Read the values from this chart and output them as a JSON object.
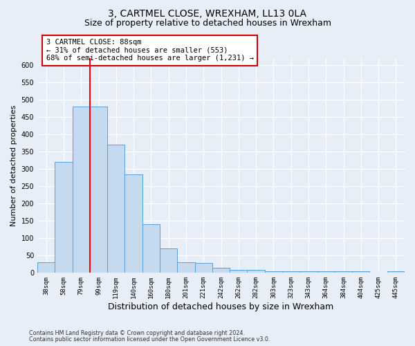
{
  "title": "3, CARTMEL CLOSE, WREXHAM, LL13 0LA",
  "subtitle": "Size of property relative to detached houses in Wrexham",
  "xlabel": "Distribution of detached houses by size in Wrexham",
  "ylabel": "Number of detached properties",
  "bar_labels": [
    "38sqm",
    "58sqm",
    "79sqm",
    "99sqm",
    "119sqm",
    "140sqm",
    "160sqm",
    "180sqm",
    "201sqm",
    "221sqm",
    "242sqm",
    "262sqm",
    "282sqm",
    "303sqm",
    "323sqm",
    "343sqm",
    "364sqm",
    "384sqm",
    "404sqm",
    "425sqm",
    "445sqm"
  ],
  "bar_values": [
    30,
    320,
    480,
    480,
    370,
    285,
    140,
    70,
    30,
    28,
    15,
    8,
    8,
    5,
    5,
    5,
    5,
    5,
    5,
    0,
    5
  ],
  "bar_color": "#c5d9ef",
  "bar_edge_color": "#5a9fd4",
  "red_line_x": 3.0,
  "annotation_text": "3 CARTMEL CLOSE: 88sqm\n← 31% of detached houses are smaller (553)\n68% of semi-detached houses are larger (1,231) →",
  "annotation_box_color": "#ffffff",
  "annotation_box_edge": "#cc0000",
  "ylim": [
    0,
    620
  ],
  "yticks": [
    0,
    50,
    100,
    150,
    200,
    250,
    300,
    350,
    400,
    450,
    500,
    550,
    600
  ],
  "footer1": "Contains HM Land Registry data © Crown copyright and database right 2024.",
  "footer2": "Contains public sector information licensed under the Open Government Licence v3.0.",
  "bg_color": "#e8eef7",
  "plot_bg_color": "#e8eef7",
  "grid_color": "#ffffff",
  "title_fontsize": 10,
  "subtitle_fontsize": 9,
  "xlabel_fontsize": 9,
  "ylabel_fontsize": 8,
  "annot_fontsize": 7.5
}
